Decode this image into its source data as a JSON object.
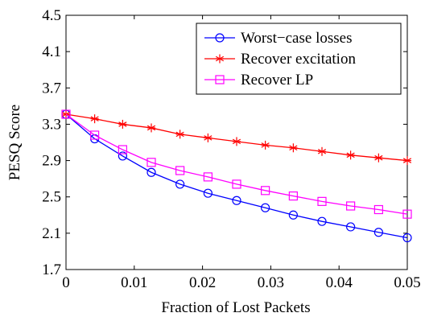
{
  "chart_data": {
    "type": "line",
    "xlabel": "Fraction of Lost Packets",
    "ylabel": "PESQ Score",
    "xlim": [
      0,
      0.05
    ],
    "ylim": [
      1.7,
      4.5
    ],
    "x_ticks": [
      0,
      0.01,
      0.02,
      0.03,
      0.04,
      0.05
    ],
    "x_tick_labels": [
      "0",
      "0.01",
      "0.02",
      "0.03",
      "0.04",
      "0.05"
    ],
    "y_ticks": [
      1.7,
      2.1,
      2.5,
      2.9,
      3.3,
      3.7,
      4.1,
      4.5
    ],
    "y_tick_labels": [
      "1.7",
      "2.1",
      "2.5",
      "2.9",
      "3.3",
      "3.7",
      "4.1",
      "4.5"
    ],
    "grid": false,
    "legend_position": "top-right",
    "x": [
      0,
      0.0042,
      0.0083,
      0.0125,
      0.0167,
      0.0208,
      0.025,
      0.0292,
      0.0333,
      0.0375,
      0.0417,
      0.0458,
      0.05
    ],
    "series": [
      {
        "name": "Worst−case losses",
        "color": "#0000ff",
        "marker": "circle",
        "values": [
          3.41,
          3.14,
          2.95,
          2.77,
          2.64,
          2.54,
          2.46,
          2.38,
          2.3,
          2.23,
          2.17,
          2.11,
          2.05
        ]
      },
      {
        "name": "Recover excitation",
        "color": "#ff0000",
        "marker": "star",
        "values": [
          3.41,
          3.36,
          3.3,
          3.26,
          3.19,
          3.15,
          3.11,
          3.07,
          3.04,
          3.0,
          2.96,
          2.93,
          2.9
        ]
      },
      {
        "name": "Recover LP",
        "color": "#ff00ff",
        "marker": "square",
        "values": [
          3.41,
          3.18,
          3.02,
          2.88,
          2.79,
          2.72,
          2.64,
          2.57,
          2.51,
          2.45,
          2.4,
          2.36,
          2.31
        ]
      }
    ]
  }
}
